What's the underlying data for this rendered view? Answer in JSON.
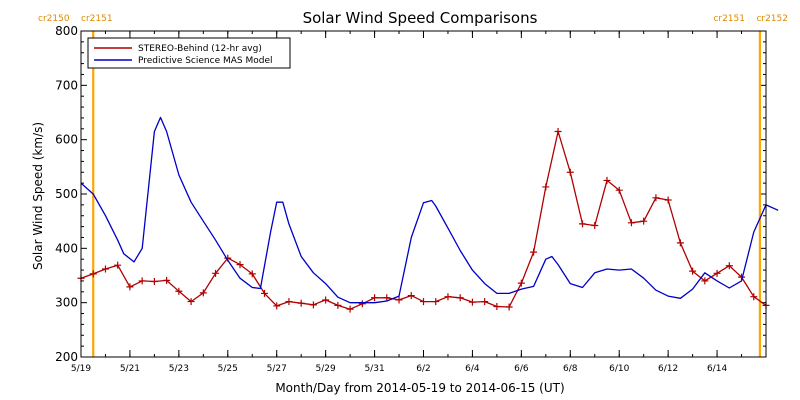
{
  "chart_data": {
    "type": "line",
    "title": "Solar Wind Speed Comparisons",
    "xlabel": "Month/Day from 2014-05-19 to 2014-06-15 (UT)",
    "ylabel": "Solar Wind Speed (km/s)",
    "xlim": [
      "2014-05-19",
      "2014-06-16"
    ],
    "ylim": [
      200,
      800
    ],
    "x_ticks": [
      {
        "date": "2014-05-19",
        "label": "5/19"
      },
      {
        "date": "2014-05-21",
        "label": "5/21"
      },
      {
        "date": "2014-05-23",
        "label": "5/23"
      },
      {
        "date": "2014-05-25",
        "label": "5/25"
      },
      {
        "date": "2014-05-27",
        "label": "5/27"
      },
      {
        "date": "2014-05-29",
        "label": "5/29"
      },
      {
        "date": "2014-05-31",
        "label": "5/31"
      },
      {
        "date": "2014-06-02",
        "label": "6/2"
      },
      {
        "date": "2014-06-04",
        "label": "6/4"
      },
      {
        "date": "2014-06-06",
        "label": "6/6"
      },
      {
        "date": "2014-06-08",
        "label": "6/8"
      },
      {
        "date": "2014-06-10",
        "label": "6/10"
      },
      {
        "date": "2014-06-12",
        "label": "6/12"
      },
      {
        "date": "2014-06-14",
        "label": "6/14"
      }
    ],
    "y_ticks": [
      200,
      300,
      400,
      500,
      600,
      700,
      800
    ],
    "legend_position": "top-left",
    "carrington_markers": [
      {
        "date": "2014-05-19 12:00",
        "left_label": "cr2150",
        "right_label": "cr2151",
        "color": "#ffa500"
      },
      {
        "date": "2014-06-15 18:00",
        "left_label": "cr2151",
        "right_label": "cr2152",
        "color": "#ffa500"
      }
    ],
    "series": [
      {
        "name": "STEREO-Behind (12-hr avg)",
        "color": "#b00000",
        "marker": "plus",
        "points": [
          [
            "2014-05-19 00:00",
            345
          ],
          [
            "2014-05-19 12:00",
            353
          ],
          [
            "2014-05-20 00:00",
            362
          ],
          [
            "2014-05-20 12:00",
            369
          ],
          [
            "2014-05-21 00:00",
            329
          ],
          [
            "2014-05-21 12:00",
            340
          ],
          [
            "2014-05-22 00:00",
            339
          ],
          [
            "2014-05-22 12:00",
            341
          ],
          [
            "2014-05-23 00:00",
            321
          ],
          [
            "2014-05-23 12:00",
            302
          ],
          [
            "2014-05-24 00:00",
            318
          ],
          [
            "2014-05-24 12:00",
            354
          ],
          [
            "2014-05-25 00:00",
            382
          ],
          [
            "2014-05-25 12:00",
            370
          ],
          [
            "2014-05-26 00:00",
            353
          ],
          [
            "2014-05-26 12:00",
            317
          ],
          [
            "2014-05-27 00:00",
            294
          ],
          [
            "2014-05-27 12:00",
            302
          ],
          [
            "2014-05-28 00:00",
            299
          ],
          [
            "2014-05-28 12:00",
            296
          ],
          [
            "2014-05-29 00:00",
            305
          ],
          [
            "2014-05-29 12:00",
            295
          ],
          [
            "2014-05-30 00:00",
            288
          ],
          [
            "2014-05-30 12:00",
            298
          ],
          [
            "2014-05-31 00:00",
            309
          ],
          [
            "2014-05-31 12:00",
            309
          ],
          [
            "2014-06-01 00:00",
            305
          ],
          [
            "2014-06-01 12:00",
            313
          ],
          [
            "2014-06-02 00:00",
            302
          ],
          [
            "2014-06-02 12:00",
            302
          ],
          [
            "2014-06-03 00:00",
            311
          ],
          [
            "2014-06-03 12:00",
            309
          ],
          [
            "2014-06-04 00:00",
            301
          ],
          [
            "2014-06-04 12:00",
            302
          ],
          [
            "2014-06-05 00:00",
            293
          ],
          [
            "2014-06-05 12:00",
            292
          ],
          [
            "2014-06-06 00:00",
            336
          ],
          [
            "2014-06-06 12:00",
            393
          ],
          [
            "2014-06-07 00:00",
            513
          ],
          [
            "2014-06-07 12:00",
            615
          ],
          [
            "2014-06-08 00:00",
            540
          ],
          [
            "2014-06-08 12:00",
            445
          ],
          [
            "2014-06-09 00:00",
            442
          ],
          [
            "2014-06-09 12:00",
            525
          ],
          [
            "2014-06-10 00:00",
            507
          ],
          [
            "2014-06-10 12:00",
            447
          ],
          [
            "2014-06-11 00:00",
            450
          ],
          [
            "2014-06-11 12:00",
            493
          ],
          [
            "2014-06-12 00:00",
            489
          ],
          [
            "2014-06-12 12:00",
            410
          ],
          [
            "2014-06-13 00:00",
            358
          ],
          [
            "2014-06-13 12:00",
            340
          ],
          [
            "2014-06-14 00:00",
            354
          ],
          [
            "2014-06-14 12:00",
            368
          ],
          [
            "2014-06-15 00:00",
            347
          ],
          [
            "2014-06-15 12:00",
            311
          ],
          [
            "2014-06-16 00:00",
            295
          ]
        ]
      },
      {
        "name": "Predictive Science MAS Model",
        "color": "#0000c8",
        "marker": "none",
        "points": [
          [
            "2014-05-19 00:00",
            520
          ],
          [
            "2014-05-19 12:00",
            500
          ],
          [
            "2014-05-20 00:00",
            460
          ],
          [
            "2014-05-20 12:00",
            415
          ],
          [
            "2014-05-20 18:00",
            390
          ],
          [
            "2014-05-21 04:00",
            375
          ],
          [
            "2014-05-21 12:00",
            400
          ],
          [
            "2014-05-22 00:00",
            615
          ],
          [
            "2014-05-22 06:00",
            641
          ],
          [
            "2014-05-22 12:00",
            615
          ],
          [
            "2014-05-23 00:00",
            535
          ],
          [
            "2014-05-23 12:00",
            485
          ],
          [
            "2014-05-24 00:00",
            450
          ],
          [
            "2014-05-24 12:00",
            415
          ],
          [
            "2014-05-25 00:00",
            378
          ],
          [
            "2014-05-25 12:00",
            345
          ],
          [
            "2014-05-26 00:00",
            328
          ],
          [
            "2014-05-26 08:00",
            326
          ],
          [
            "2014-05-26 18:00",
            430
          ],
          [
            "2014-05-27 00:00",
            485
          ],
          [
            "2014-05-27 06:00",
            485
          ],
          [
            "2014-05-27 12:00",
            445
          ],
          [
            "2014-05-28 00:00",
            385
          ],
          [
            "2014-05-28 12:00",
            355
          ],
          [
            "2014-05-29 00:00",
            335
          ],
          [
            "2014-05-29 12:00",
            310
          ],
          [
            "2014-05-30 00:00",
            300
          ],
          [
            "2014-05-30 12:00",
            300
          ],
          [
            "2014-05-31 00:00",
            300
          ],
          [
            "2014-05-31 12:00",
            303
          ],
          [
            "2014-06-01 00:00",
            312
          ],
          [
            "2014-06-01 12:00",
            420
          ],
          [
            "2014-06-02 00:00",
            484
          ],
          [
            "2014-06-02 08:00",
            488
          ],
          [
            "2014-06-02 12:00",
            478
          ],
          [
            "2014-06-03 00:00",
            437
          ],
          [
            "2014-06-03 12:00",
            396
          ],
          [
            "2014-06-04 00:00",
            360
          ],
          [
            "2014-06-04 12:00",
            335
          ],
          [
            "2014-06-05 00:00",
            317
          ],
          [
            "2014-06-05 12:00",
            317
          ],
          [
            "2014-06-06 00:00",
            325
          ],
          [
            "2014-06-06 12:00",
            330
          ],
          [
            "2014-06-07 00:00",
            380
          ],
          [
            "2014-06-07 06:00",
            385
          ],
          [
            "2014-06-07 12:00",
            370
          ],
          [
            "2014-06-08 00:00",
            335
          ],
          [
            "2014-06-08 12:00",
            328
          ],
          [
            "2014-06-09 00:00",
            355
          ],
          [
            "2014-06-09 12:00",
            362
          ],
          [
            "2014-06-10 00:00",
            360
          ],
          [
            "2014-06-10 12:00",
            362
          ],
          [
            "2014-06-11 00:00",
            345
          ],
          [
            "2014-06-11 12:00",
            323
          ],
          [
            "2014-06-12 00:00",
            312
          ],
          [
            "2014-06-12 12:00",
            308
          ],
          [
            "2014-06-13 00:00",
            325
          ],
          [
            "2014-06-13 12:00",
            355
          ],
          [
            "2014-06-14 00:00",
            340
          ],
          [
            "2014-06-14 12:00",
            327
          ],
          [
            "2014-06-15 00:00",
            340
          ],
          [
            "2014-06-15 12:00",
            430
          ],
          [
            "2014-06-16 00:00",
            480
          ],
          [
            "2014-06-16 12:00",
            470
          ]
        ]
      }
    ]
  }
}
